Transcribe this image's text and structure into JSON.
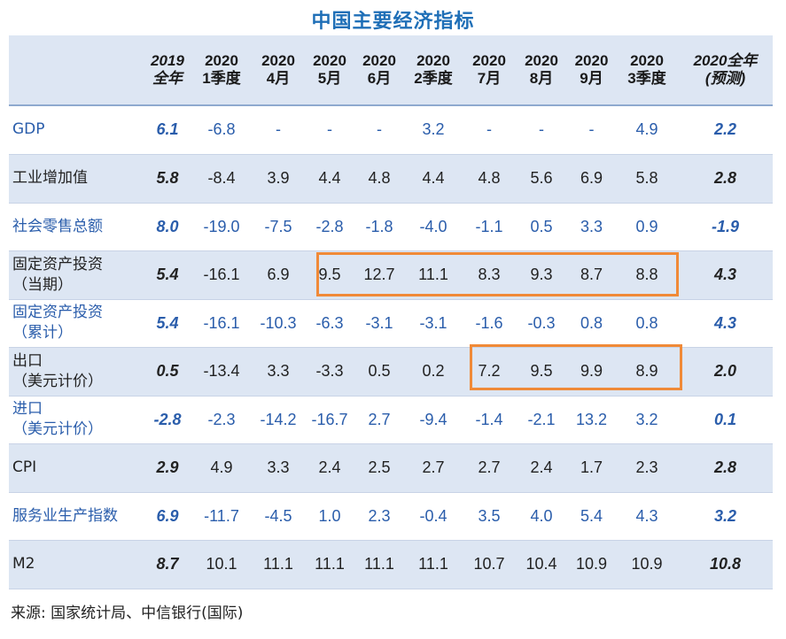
{
  "title": "中国主要经济指标",
  "header": {
    "columns": [
      {
        "line1": "",
        "line2": ""
      },
      {
        "line1": "2019",
        "line2": "全年"
      },
      {
        "line1": "2020",
        "line2": "1季度"
      },
      {
        "line1": "2020",
        "line2": "4月"
      },
      {
        "line1": "2020",
        "line2": "5月"
      },
      {
        "line1": "2020",
        "line2": "6月"
      },
      {
        "line1": "2020",
        "line2": "2季度"
      },
      {
        "line1": "2020",
        "line2": "7月"
      },
      {
        "line1": "2020",
        "line2": "8月"
      },
      {
        "line1": "2020",
        "line2": "9月"
      },
      {
        "line1": "2020",
        "line2": "3季度"
      },
      {
        "line1": "2020全年",
        "line2": "(预测)"
      }
    ]
  },
  "rows": [
    {
      "label1": "GDP",
      "label2": "",
      "values": [
        "6.1",
        "-6.8",
        "-",
        "-",
        "-",
        "3.2",
        "-",
        "-",
        "-",
        "4.9",
        "2.2"
      ]
    },
    {
      "label1": "工业增加值",
      "label2": "",
      "values": [
        "5.8",
        "-8.4",
        "3.9",
        "4.4",
        "4.8",
        "4.4",
        "4.8",
        "5.6",
        "6.9",
        "5.8",
        "2.8"
      ]
    },
    {
      "label1": "社会零售总额",
      "label2": "",
      "values": [
        "8.0",
        "-19.0",
        "-7.5",
        "-2.8",
        "-1.8",
        "-4.0",
        "-1.1",
        "0.5",
        "3.3",
        "0.9",
        "-1.9"
      ]
    },
    {
      "label1": "固定资产投资",
      "label2": "（当期）",
      "values": [
        "5.4",
        "-16.1",
        "6.9",
        "9.5",
        "12.7",
        "11.1",
        "8.3",
        "9.3",
        "8.7",
        "8.8",
        "4.3"
      ]
    },
    {
      "label1": "固定资产投资",
      "label2": "（累计）",
      "values": [
        "5.4",
        "-16.1",
        "-10.3",
        "-6.3",
        "-3.1",
        "-3.1",
        "-1.6",
        "-0.3",
        "0.8",
        "0.8",
        "4.3"
      ]
    },
    {
      "label1": "出口",
      "label2": "（美元计价）",
      "values": [
        "0.5",
        "-13.4",
        "3.3",
        "-3.3",
        "0.5",
        "0.2",
        "7.2",
        "9.5",
        "9.9",
        "8.9",
        "2.0"
      ]
    },
    {
      "label1": "进口",
      "label2": "（美元计价）",
      "values": [
        "-2.8",
        "-2.3",
        "-14.2",
        "-16.7",
        "2.7",
        "-9.4",
        "-1.4",
        "-2.1",
        "13.2",
        "3.2",
        "0.1"
      ]
    },
    {
      "label1": "CPI",
      "label2": "",
      "values": [
        "2.9",
        "4.9",
        "3.3",
        "2.4",
        "2.5",
        "2.7",
        "2.7",
        "2.4",
        "1.7",
        "2.3",
        "2.8"
      ]
    },
    {
      "label1": "服务业生产指数",
      "label2": "",
      "values": [
        "6.9",
        "-11.7",
        "-4.5",
        "1.0",
        "2.3",
        "-0.4",
        "3.5",
        "4.0",
        "5.4",
        "4.3",
        "3.2"
      ]
    },
    {
      "label1": "M2",
      "label2": "",
      "values": [
        "8.7",
        "10.1",
        "11.1",
        "11.1",
        "11.1",
        "11.1",
        "10.7",
        "10.4",
        "10.9",
        "10.9",
        "10.8"
      ]
    }
  ],
  "source": "来源: 国家统计局、中信银行(国际)",
  "colors": {
    "accent": "#1f6fb7",
    "highlight": "#f08a38",
    "shade": "#dde6f3"
  }
}
